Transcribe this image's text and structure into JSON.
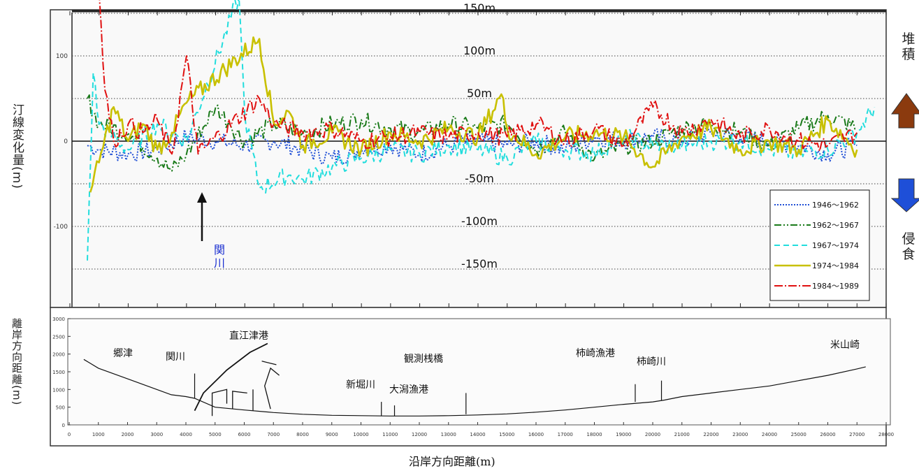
{
  "upper_chart": {
    "ylabel": "汀線変化量(m)",
    "right_top": "堆積",
    "right_bottom": "侵食",
    "accretion_color": "#8b3a0e",
    "erosion_color": "#1e4fd8",
    "gridline_labels": [
      "150m",
      "100m",
      "50m",
      "-50m",
      "-100m",
      "-150m"
    ],
    "tick_labels": [
      "100",
      "0",
      "-100"
    ],
    "annotation": "関川",
    "annotation_color": "#1a2fd0",
    "legend": [
      {
        "label": "1946〜1962",
        "color": "#1f4fd6",
        "dash": "2,2"
      },
      {
        "label": "1962〜1967",
        "color": "#1a7a1a",
        "dash": "10,3,2,3,2,3"
      },
      {
        "label": "1967〜1974",
        "color": "#22dddd",
        "dash": "8,5"
      },
      {
        "label": "1974〜1984",
        "color": "#c8c000",
        "dash": "none"
      },
      {
        "label": "1984〜1989",
        "color": "#e01010",
        "dash": "12,3,2,3"
      }
    ]
  },
  "lower_chart": {
    "ylabel": "離岸方向距離(m)",
    "xlabel": "沿岸方向距離(m)",
    "y_ticks": [
      "3000",
      "2500",
      "2000",
      "1500",
      "1000",
      "500",
      "0"
    ],
    "x_ticks": [
      "0",
      "1000",
      "2000",
      "3000",
      "4000",
      "5000",
      "6000",
      "7000",
      "8000",
      "9000",
      "10000",
      "11000",
      "12000",
      "13000",
      "14000",
      "15000",
      "16000",
      "17000",
      "18000",
      "19000",
      "20000",
      "21000",
      "22000",
      "23000",
      "24000",
      "25000",
      "26000",
      "27000",
      "28000"
    ],
    "places": [
      "郷津",
      "関川",
      "直江津港",
      "観測桟橋",
      "新堀川",
      "大潟漁港",
      "柿崎漁港",
      "柿崎川",
      "米山崎"
    ]
  },
  "chart_data": [
    {
      "type": "line",
      "title": "",
      "xlabel": "",
      "ylabel": "汀線変化量(m)",
      "ylim": [
        -180,
        180
      ],
      "xlim": [
        0,
        28000
      ],
      "grid": "horizontal dotted at ±50, ±100, ±150",
      "legend_position": "bottom-right",
      "series": [
        {
          "name": "1946〜1962",
          "points": [
            [
              600,
              -5
            ],
            [
              1000,
              -10
            ],
            [
              2000,
              -15
            ],
            [
              3000,
              -10
            ],
            [
              4000,
              5
            ],
            [
              5000,
              0
            ],
            [
              6000,
              -5
            ],
            [
              7000,
              0
            ],
            [
              8000,
              -10
            ],
            [
              9000,
              -20
            ],
            [
              10000,
              -10
            ],
            [
              11000,
              -5
            ],
            [
              12000,
              -15
            ],
            [
              13000,
              -5
            ],
            [
              14000,
              0
            ],
            [
              15000,
              -5
            ],
            [
              16000,
              0
            ],
            [
              17000,
              -10
            ],
            [
              18000,
              5
            ],
            [
              19000,
              0
            ],
            [
              20000,
              5
            ],
            [
              21000,
              0
            ],
            [
              22000,
              10
            ],
            [
              23000,
              5
            ],
            [
              24000,
              0
            ],
            [
              25000,
              -5
            ],
            [
              26000,
              -15
            ],
            [
              27000,
              -5
            ]
          ]
        },
        {
          "name": "1962〜1967",
          "points": [
            [
              600,
              50
            ],
            [
              1000,
              20
            ],
            [
              2000,
              10
            ],
            [
              3000,
              -20
            ],
            [
              3500,
              -35
            ],
            [
              4000,
              -15
            ],
            [
              5000,
              40
            ],
            [
              5500,
              20
            ],
            [
              6000,
              0
            ],
            [
              7000,
              20
            ],
            [
              8000,
              10
            ],
            [
              9000,
              20
            ],
            [
              10000,
              25
            ],
            [
              11000,
              15
            ],
            [
              12000,
              10
            ],
            [
              13000,
              20
            ],
            [
              14000,
              15
            ],
            [
              15000,
              20
            ],
            [
              16000,
              -10
            ],
            [
              17000,
              10
            ],
            [
              18000,
              -20
            ],
            [
              19000,
              -5
            ],
            [
              20000,
              0
            ],
            [
              21000,
              15
            ],
            [
              22000,
              20
            ],
            [
              23000,
              10
            ],
            [
              24000,
              -5
            ],
            [
              25000,
              15
            ],
            [
              26000,
              30
            ],
            [
              27000,
              15
            ]
          ]
        },
        {
          "name": "1967〜1974",
          "points": [
            [
              600,
              -140
            ],
            [
              800,
              80
            ],
            [
              1000,
              20
            ],
            [
              2000,
              -10
            ],
            [
              3000,
              20
            ],
            [
              4000,
              0
            ],
            [
              5800,
              170
            ],
            [
              6000,
              30
            ],
            [
              6500,
              -55
            ],
            [
              7500,
              -40
            ],
            [
              8000,
              -45
            ],
            [
              9000,
              -30
            ],
            [
              10000,
              -20
            ],
            [
              11000,
              -10
            ],
            [
              12000,
              -15
            ],
            [
              13000,
              -5
            ],
            [
              14000,
              -10
            ],
            [
              15000,
              -20
            ],
            [
              16000,
              0
            ],
            [
              17000,
              -10
            ],
            [
              18000,
              -15
            ],
            [
              19000,
              5
            ],
            [
              20000,
              -5
            ],
            [
              21000,
              -5
            ],
            [
              22000,
              0
            ],
            [
              23000,
              0
            ],
            [
              24000,
              -10
            ],
            [
              25000,
              -15
            ],
            [
              26000,
              -10
            ],
            [
              27000,
              10
            ],
            [
              27600,
              40
            ]
          ]
        },
        {
          "name": "1974〜1984",
          "points": [
            [
              700,
              -60
            ],
            [
              1000,
              -25
            ],
            [
              1500,
              40
            ],
            [
              2000,
              0
            ],
            [
              2500,
              20
            ],
            [
              3000,
              -10
            ],
            [
              3500,
              10
            ],
            [
              4000,
              45
            ],
            [
              6500,
              120
            ],
            [
              7000,
              20
            ],
            [
              7500,
              35
            ],
            [
              8000,
              -5
            ],
            [
              9000,
              10
            ],
            [
              10000,
              -10
            ],
            [
              11000,
              10
            ],
            [
              12000,
              0
            ],
            [
              13000,
              15
            ],
            [
              14000,
              5
            ],
            [
              14800,
              55
            ],
            [
              15000,
              15
            ],
            [
              16000,
              -15
            ],
            [
              17000,
              5
            ],
            [
              18000,
              10
            ],
            [
              19000,
              5
            ],
            [
              20000,
              -30
            ],
            [
              21000,
              5
            ],
            [
              22000,
              15
            ],
            [
              23000,
              -10
            ],
            [
              24000,
              0
            ],
            [
              25000,
              -10
            ],
            [
              26000,
              25
            ],
            [
              27000,
              -10
            ]
          ]
        },
        {
          "name": "1984〜1989",
          "points": [
            [
              1000,
              175
            ],
            [
              1200,
              60
            ],
            [
              1500,
              0
            ],
            [
              2000,
              20
            ],
            [
              2500,
              10
            ],
            [
              3000,
              25
            ],
            [
              3500,
              -15
            ],
            [
              4000,
              100
            ],
            [
              4400,
              -15
            ],
            [
              6500,
              50
            ],
            [
              7000,
              20
            ],
            [
              8000,
              10
            ],
            [
              9000,
              15
            ],
            [
              10000,
              0
            ],
            [
              11000,
              5
            ],
            [
              12000,
              10
            ],
            [
              13000,
              5
            ],
            [
              14000,
              10
            ],
            [
              15000,
              5
            ],
            [
              16000,
              20
            ],
            [
              17000,
              0
            ],
            [
              18000,
              15
            ],
            [
              19000,
              -5
            ],
            [
              20000,
              40
            ],
            [
              21000,
              10
            ],
            [
              22000,
              25
            ],
            [
              23000,
              5
            ],
            [
              24000,
              15
            ],
            [
              25000,
              0
            ],
            [
              26000,
              -5
            ],
            [
              27000,
              10
            ]
          ]
        }
      ]
    },
    {
      "type": "line",
      "title": "",
      "xlabel": "沿岸方向距離(m)",
      "ylabel": "離岸方向距離(m)",
      "xlim": [
        0,
        28000
      ],
      "ylim": [
        0,
        3000
      ],
      "grid": false,
      "series": [
        {
          "name": "",
          "points": [
            [
              500,
              1850
            ],
            [
              1000,
              1600
            ],
            [
              2000,
              1300
            ],
            [
              3000,
              1000
            ],
            [
              3500,
              850
            ],
            [
              4000,
              800
            ],
            [
              4300,
              750
            ],
            [
              5000,
              500
            ],
            [
              6000,
              420
            ],
            [
              7000,
              350
            ],
            [
              8000,
              300
            ],
            [
              9000,
              270
            ],
            [
              10000,
              260
            ],
            [
              11000,
              250
            ],
            [
              12000,
              250
            ],
            [
              13000,
              260
            ],
            [
              14000,
              280
            ],
            [
              15000,
              310
            ],
            [
              16000,
              360
            ],
            [
              17000,
              420
            ],
            [
              18000,
              500
            ],
            [
              19000,
              580
            ],
            [
              20000,
              650
            ],
            [
              20400,
              700
            ],
            [
              21000,
              800
            ],
            [
              22000,
              900
            ],
            [
              23000,
              1000
            ],
            [
              24000,
              1100
            ],
            [
              25000,
              1250
            ],
            [
              26000,
              1400
            ],
            [
              27000,
              1580
            ],
            [
              27300,
              1640
            ]
          ]
        },
        {
          "name": "",
          "points": [
            [
              4300,
              400
            ],
            [
              4600,
              900
            ],
            [
              5400,
              1550
            ],
            [
              6200,
              2050
            ],
            [
              6800,
              2300
            ]
          ]
        }
      ]
    }
  ]
}
